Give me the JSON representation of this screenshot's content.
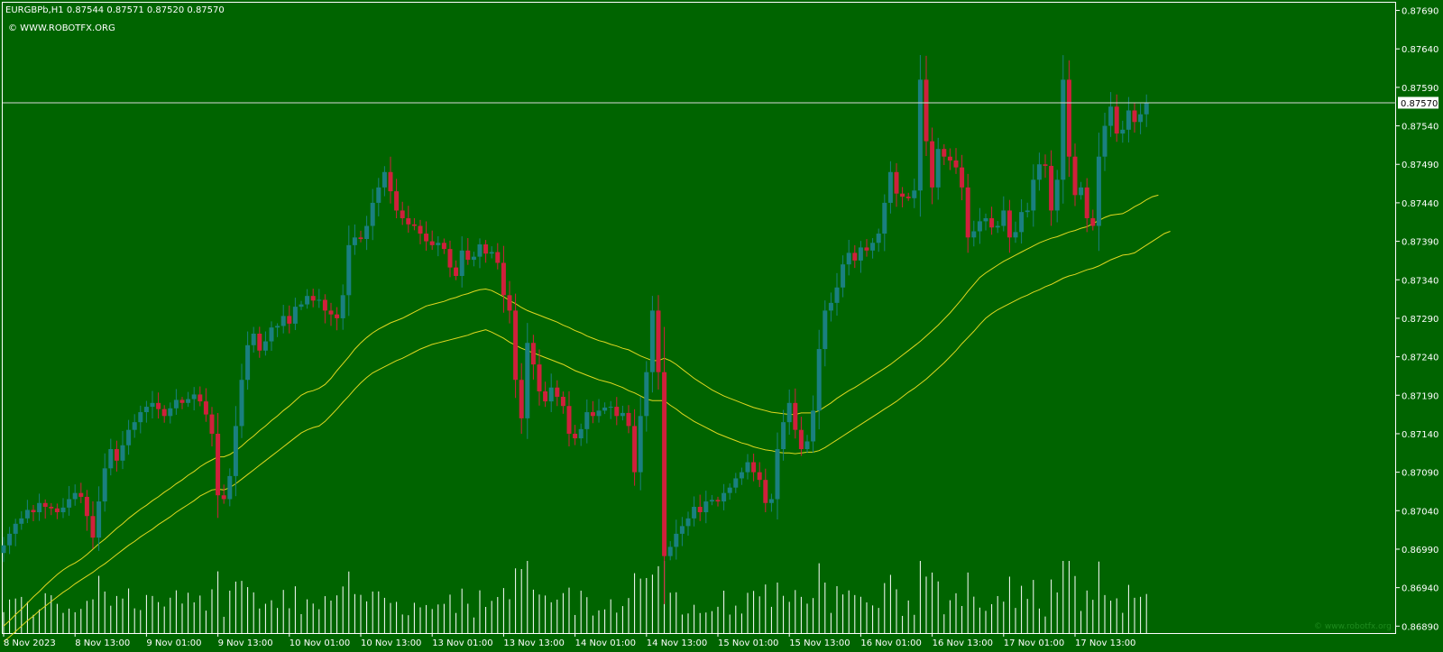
{
  "header": {
    "symbol_line": "EURGBPb,H1  0.87544 0.87571 0.87520 0.87570",
    "copyright": "© WWW.ROBOTFX.ORG"
  },
  "watermark": "© www.robotfx.org",
  "colors": {
    "background": "#006400",
    "bull": "#1a8080",
    "bear": "#d0203c",
    "doji": "#e0e0e0",
    "envelope": "#e0d820",
    "volume": "#ffffff",
    "axis": "#ffffff"
  },
  "chart_data": {
    "type": "candlestick",
    "symbol": "EURGBPb",
    "timeframe": "H1",
    "ohlc_header": {
      "open": 0.87544,
      "high": 0.87571,
      "low": 0.8752,
      "close": 0.8757
    },
    "current_price": 0.8757,
    "y_ticks": [
      "0.87690",
      "0.87640",
      "0.87590",
      "0.87540",
      "0.87490",
      "0.87440",
      "0.87390",
      "0.87340",
      "0.87290",
      "0.87240",
      "0.87190",
      "0.87140",
      "0.87090",
      "0.87040",
      "0.86990",
      "0.86940",
      "0.86890"
    ],
    "ylim": [
      0.86881,
      0.877
    ],
    "x_ticks": [
      "8 Nov 2023",
      "8 Nov 13:00",
      "9 Nov 01:00",
      "9 Nov 13:00",
      "10 Nov 01:00",
      "10 Nov 13:00",
      "13 Nov 01:00",
      "13 Nov 13:00",
      "14 Nov 01:00",
      "14 Nov 13:00",
      "15 Nov 01:00",
      "15 Nov 13:00",
      "16 Nov 01:00",
      "16 Nov 13:00",
      "17 Nov 01:00",
      "17 Nov 13:00"
    ],
    "x_tick_bar_index": [
      0,
      12,
      24,
      36,
      48,
      60,
      72,
      84,
      96,
      108,
      120,
      132,
      144,
      156,
      168,
      180
    ],
    "closes": [
      0.86995,
      0.8701,
      0.87023,
      0.8703,
      0.87041,
      0.87038,
      0.8705,
      0.87045,
      0.87043,
      0.87038,
      0.87044,
      0.87055,
      0.87063,
      0.87058,
      0.87033,
      0.87005,
      0.87052,
      0.87095,
      0.8712,
      0.87105,
      0.87125,
      0.87145,
      0.87155,
      0.87168,
      0.87175,
      0.8718,
      0.87172,
      0.87163,
      0.87173,
      0.87184,
      0.8718,
      0.87185,
      0.87191,
      0.87182,
      0.87165,
      0.8714,
      0.8706,
      0.87055,
      0.87085,
      0.8715,
      0.8721,
      0.87255,
      0.8727,
      0.87248,
      0.8726,
      0.87278,
      0.8728,
      0.87293,
      0.87283,
      0.87305,
      0.87308,
      0.87319,
      0.87313,
      0.87314,
      0.873,
      0.87295,
      0.8729,
      0.8732,
      0.87385,
      0.87395,
      0.87393,
      0.8741,
      0.8744,
      0.8746,
      0.8748,
      0.87455,
      0.8743,
      0.8742,
      0.87412,
      0.8741,
      0.874,
      0.8739,
      0.87385,
      0.87388,
      0.8738,
      0.87356,
      0.87345,
      0.87378,
      0.87366,
      0.8737,
      0.87386,
      0.87374,
      0.87376,
      0.87362,
      0.8732,
      0.873,
      0.8721,
      0.8716,
      0.87258,
      0.8723,
      0.87195,
      0.87182,
      0.872,
      0.87188,
      0.87176,
      0.8714,
      0.87134,
      0.87146,
      0.87168,
      0.87163,
      0.8717,
      0.87174,
      0.87175,
      0.87163,
      0.87167,
      0.8715,
      0.8709,
      0.87163,
      0.8722,
      0.873,
      0.8722,
      0.86981,
      0.86993,
      0.8701,
      0.8702,
      0.8703,
      0.87045,
      0.87038,
      0.87052,
      0.87054,
      0.87052,
      0.87063,
      0.8707,
      0.87082,
      0.8709,
      0.87103,
      0.8709,
      0.8708,
      0.8705,
      0.87055,
      0.8712,
      0.87155,
      0.8718,
      0.87145,
      0.8712,
      0.8713,
      0.8717,
      0.8725,
      0.873,
      0.8731,
      0.8733,
      0.8736,
      0.87375,
      0.87365,
      0.87382,
      0.87378,
      0.87388,
      0.874,
      0.8744,
      0.8748,
      0.87452,
      0.87448,
      0.87446,
      0.87456,
      0.876,
      0.8752,
      0.8746,
      0.8751,
      0.875,
      0.87495,
      0.87486,
      0.8746,
      0.87395,
      0.87403,
      0.87416,
      0.8742,
      0.87408,
      0.8741,
      0.8743,
      0.87395,
      0.87402,
      0.87428,
      0.8743,
      0.8747,
      0.8749,
      0.87488,
      0.8743,
      0.8747,
      0.876,
      0.875,
      0.8745,
      0.8746,
      0.8742,
      0.8741,
      0.875,
      0.8754,
      0.87565,
      0.8753,
      0.87535,
      0.8756,
      0.87545,
      0.87555,
      0.8757
    ],
    "envelope_upper": [
      0.8689,
      0.86897,
      0.86905,
      0.86912,
      0.8692,
      0.86928,
      0.86935,
      0.86943,
      0.8695,
      0.86957,
      0.86963,
      0.86968,
      0.86972,
      0.86977,
      0.86983,
      0.8699,
      0.86997,
      0.87003,
      0.8701,
      0.87017,
      0.87023,
      0.8703,
      0.87036,
      0.87042,
      0.87047,
      0.87053,
      0.87058,
      0.87064,
      0.87069,
      0.87075,
      0.8708,
      0.87086,
      0.87091,
      0.87097,
      0.87102,
      0.87106,
      0.8711,
      0.8711,
      0.87113,
      0.87118,
      0.87124,
      0.87131,
      0.87137,
      0.87144,
      0.8715,
      0.87157,
      0.87163,
      0.8717,
      0.87176,
      0.87183,
      0.8719,
      0.87194,
      0.87196,
      0.87199,
      0.87204,
      0.87212,
      0.87222,
      0.87231,
      0.8724,
      0.8725,
      0.87258,
      0.87265,
      0.87271,
      0.87276,
      0.8728,
      0.87284,
      0.87287,
      0.8729,
      0.87294,
      0.87298,
      0.87302,
      0.87306,
      0.87308,
      0.8731,
      0.87312,
      0.87315,
      0.87317,
      0.8732,
      0.87322,
      0.87325,
      0.87327,
      0.87328,
      0.87326,
      0.87322,
      0.87318,
      0.87313,
      0.87309,
      0.87304,
      0.873,
      0.87297,
      0.87294,
      0.87291,
      0.87288,
      0.87285,
      0.87281,
      0.87278,
      0.87274,
      0.87271,
      0.87267,
      0.87264,
      0.87261,
      0.87259,
      0.87256,
      0.87254,
      0.87251,
      0.87249,
      0.87245,
      0.87241,
      0.87238,
      0.87235,
      0.87235,
      0.87238,
      0.87235,
      0.8723,
      0.87224,
      0.87218,
      0.87212,
      0.87207,
      0.87202,
      0.87197,
      0.87193,
      0.87189,
      0.87186,
      0.87183,
      0.8718,
      0.87177,
      0.87174,
      0.87172,
      0.8717,
      0.87168,
      0.87167,
      0.87166,
      0.87165,
      0.87165,
      0.87167,
      0.87167,
      0.87167,
      0.8717,
      0.87175,
      0.8718,
      0.87186,
      0.87191,
      0.87196,
      0.872,
      0.87205,
      0.8721,
      0.87215,
      0.8722,
      0.87225,
      0.8723,
      0.87236,
      0.87242,
      0.87248,
      0.87254,
      0.8726,
      0.87267,
      0.87274,
      0.87281,
      0.87289,
      0.87297,
      0.87306,
      0.87315,
      0.87325,
      0.87334,
      0.87343,
      0.87349,
      0.87354,
      0.87359,
      0.87364,
      0.87368,
      0.87372,
      0.87376,
      0.8738,
      0.87384,
      0.87388,
      0.87391,
      0.87394,
      0.87396,
      0.87399,
      0.87402,
      0.87404,
      0.87407,
      0.87409,
      0.87413,
      0.87417,
      0.87421,
      0.87424,
      0.87425,
      0.87426,
      0.8743,
      0.87435,
      0.87439,
      0.87444,
      0.87448,
      0.8745
    ],
    "envelope_lower": [
      0.8687,
      0.86876,
      0.86883,
      0.8689,
      0.86897,
      0.86903,
      0.8691,
      0.86916,
      0.86922,
      0.86928,
      0.86934,
      0.86939,
      0.86945,
      0.8695,
      0.86955,
      0.8696,
      0.86966,
      0.86971,
      0.86977,
      0.86983,
      0.86989,
      0.86995,
      0.87,
      0.87006,
      0.87011,
      0.87016,
      0.87022,
      0.87027,
      0.87032,
      0.87038,
      0.87043,
      0.87048,
      0.87053,
      0.87059,
      0.87063,
      0.87067,
      0.87068,
      0.87067,
      0.8707,
      0.87075,
      0.87081,
      0.87087,
      0.87093,
      0.87099,
      0.87105,
      0.87111,
      0.87117,
      0.87123,
      0.87129,
      0.87135,
      0.87141,
      0.87145,
      0.87148,
      0.8715,
      0.87156,
      0.87164,
      0.87172,
      0.87181,
      0.87189,
      0.87198,
      0.87206,
      0.87213,
      0.87219,
      0.87223,
      0.87227,
      0.87231,
      0.87235,
      0.87238,
      0.87242,
      0.87246,
      0.8725,
      0.87253,
      0.87256,
      0.87258,
      0.8726,
      0.87262,
      0.87264,
      0.87266,
      0.87268,
      0.87271,
      0.87273,
      0.87275,
      0.87272,
      0.87268,
      0.87264,
      0.87259,
      0.87255,
      0.87251,
      0.87248,
      0.87245,
      0.87242,
      0.87239,
      0.87236,
      0.87233,
      0.8723,
      0.87226,
      0.87222,
      0.87219,
      0.87216,
      0.87213,
      0.8721,
      0.87208,
      0.87206,
      0.87203,
      0.872,
      0.87196,
      0.87193,
      0.87189,
      0.87185,
      0.87183,
      0.87183,
      0.87183,
      0.87177,
      0.87172,
      0.87166,
      0.87161,
      0.87156,
      0.87152,
      0.87148,
      0.87144,
      0.8714,
      0.87137,
      0.87134,
      0.87131,
      0.87128,
      0.87126,
      0.87123,
      0.87121,
      0.87119,
      0.87118,
      0.87116,
      0.87115,
      0.87115,
      0.87114,
      0.87115,
      0.87116,
      0.87116,
      0.87118,
      0.87122,
      0.87127,
      0.87132,
      0.87137,
      0.87142,
      0.87147,
      0.87152,
      0.87157,
      0.87162,
      0.87167,
      0.87172,
      0.87177,
      0.87182,
      0.87188,
      0.87194,
      0.87199,
      0.87205,
      0.87211,
      0.87218,
      0.87225,
      0.87232,
      0.8724,
      0.87248,
      0.87257,
      0.87265,
      0.87273,
      0.87282,
      0.8729,
      0.87296,
      0.87301,
      0.87305,
      0.87309,
      0.87313,
      0.87317,
      0.8732,
      0.87324,
      0.87327,
      0.87331,
      0.87334,
      0.87338,
      0.87342,
      0.87345,
      0.87347,
      0.8735,
      0.87353,
      0.87355,
      0.87358,
      0.87362,
      0.87366,
      0.87369,
      0.87372,
      0.87373,
      0.87375,
      0.8738,
      0.87385,
      0.8739,
      0.87395,
      0.874,
      0.87403
    ]
  }
}
